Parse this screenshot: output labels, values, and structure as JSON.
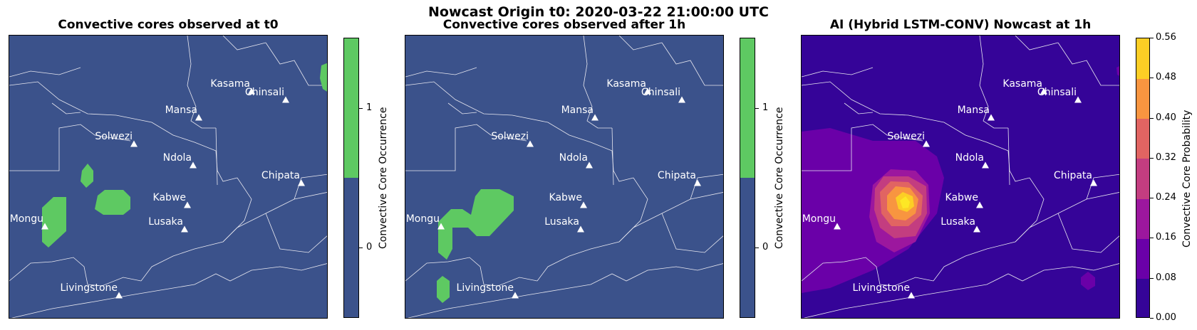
{
  "suptitle": "Nowcast Origin t0: 2020-03-22 21:00:00 UTC",
  "panels": [
    {
      "title": "Convective cores observed at t0",
      "colorbar_label": "Convective Core Occurrence",
      "colorbar_ticks": [
        "0",
        "1"
      ]
    },
    {
      "title": "Convective cores observed after 1h",
      "colorbar_label": "Convective Core Occurrence",
      "colorbar_ticks": [
        "0",
        "1"
      ]
    },
    {
      "title": "AI (Hybrid LSTM-CONV) Nowcast at 1h",
      "colorbar_label": "Convective Core Probability",
      "colorbar_ticks": [
        "0.00",
        "0.08",
        "0.16",
        "0.24",
        "0.32",
        "0.40",
        "0.48",
        "0.56"
      ]
    }
  ],
  "cities": [
    "Kasama",
    "Chinsali",
    "Mansa",
    "Solwezi",
    "Ndola",
    "Chipata",
    "Kabwe",
    "Mongu",
    "Lusaka",
    "Livingstone"
  ],
  "colors": {
    "background_binary": "#3b528b",
    "core_occurrence": "#5ec962",
    "probability_levels": [
      "#350498",
      "#6a00a8",
      "#9c179e",
      "#c33d80",
      "#e16462",
      "#f89540",
      "#fcce25"
    ]
  }
}
